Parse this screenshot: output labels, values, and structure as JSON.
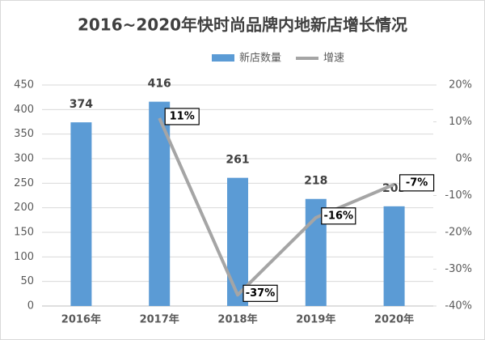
{
  "chart_data": {
    "type": "bar-line",
    "title": "2016~2020年快时尚品牌内地新店增长情况",
    "categories": [
      "2016年",
      "2017年",
      "2018年",
      "2019年",
      "2020年"
    ],
    "series": [
      {
        "name": "新店数量",
        "type": "bar",
        "color": "#5b9bd5",
        "values": [
          374,
          416,
          261,
          218,
          203
        ]
      },
      {
        "name": "增速",
        "type": "line",
        "color": "#a5a5a5",
        "axis": "y2",
        "values": [
          null,
          11,
          -37,
          -16,
          -7
        ],
        "value_labels": [
          null,
          "11%",
          "-37%",
          "-16%",
          "-7%"
        ]
      }
    ],
    "ylim": [
      0,
      450
    ],
    "yticks": [
      0,
      50,
      100,
      150,
      200,
      250,
      300,
      350,
      400,
      450
    ],
    "y2lim": [
      -40,
      20
    ],
    "y2ticks": [
      {
        "value": -40,
        "label": "-40%"
      },
      {
        "value": -30,
        "label": "-30%"
      },
      {
        "value": -20,
        "label": "-20%"
      },
      {
        "value": -10,
        "label": "-10%"
      },
      {
        "value": 0,
        "label": "0%"
      },
      {
        "value": 10,
        "label": "10%"
      },
      {
        "value": 20,
        "label": "20%"
      }
    ],
    "grid": true,
    "legend": "top"
  }
}
